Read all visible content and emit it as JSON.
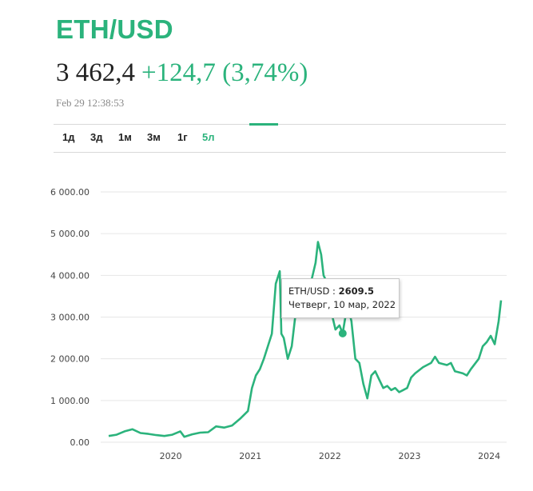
{
  "header": {
    "title": "ETH/USD",
    "price": "3 462,4",
    "change": "+124,7 (3,74%)",
    "timestamp": "Feb 29 12:38:53"
  },
  "tabs": [
    {
      "label": "1д",
      "active": false
    },
    {
      "label": "3д",
      "active": false
    },
    {
      "label": "1м",
      "active": false
    },
    {
      "label": "3м",
      "active": false
    },
    {
      "label": "1г",
      "active": false
    },
    {
      "label": "5л",
      "active": true
    }
  ],
  "colors": {
    "accent": "#2bb37c",
    "grid": "#e6e6e6"
  },
  "tooltip": {
    "series": "ETH/USD",
    "value": "2609.5",
    "date_label": "Четверг, 10 мар, 2022",
    "point": {
      "x": 2022.19,
      "y": 2609.5
    }
  },
  "chart_data": {
    "type": "line",
    "x_unit": "year",
    "xlim": [
      2019.15,
      2024.25
    ],
    "ylim": [
      0,
      6000
    ],
    "y_ticks": [
      "0.00",
      "1 000.00",
      "2 000.00",
      "3 000.00",
      "4 000.00",
      "5 000.00",
      "6 000.00"
    ],
    "x_ticks": [
      "2020",
      "2021",
      "2022",
      "2023",
      "2024"
    ],
    "grid": true,
    "series": [
      {
        "color": "#2bb37c",
        "x": [
          2019.25,
          2019.35,
          2019.45,
          2019.55,
          2019.65,
          2019.75,
          2019.85,
          2019.95,
          2020.05,
          2020.15,
          2020.2,
          2020.3,
          2020.4,
          2020.5,
          2020.6,
          2020.7,
          2020.8,
          2020.9,
          2021.0,
          2021.05,
          2021.1,
          2021.15,
          2021.2,
          2021.25,
          2021.3,
          2021.35,
          2021.4,
          2021.42,
          2021.45,
          2021.5,
          2021.55,
          2021.6,
          2021.65,
          2021.7,
          2021.75,
          2021.8,
          2021.85,
          2021.88,
          2021.92,
          2021.95,
          2022.0,
          2022.05,
          2022.1,
          2022.15,
          2022.19,
          2022.25,
          2022.3,
          2022.35,
          2022.4,
          2022.45,
          2022.5,
          2022.55,
          2022.6,
          2022.65,
          2022.7,
          2022.75,
          2022.8,
          2022.85,
          2022.9,
          2022.95,
          2023.0,
          2023.05,
          2023.1,
          2023.2,
          2023.3,
          2023.35,
          2023.4,
          2023.5,
          2023.55,
          2023.6,
          2023.7,
          2023.75,
          2023.8,
          2023.9,
          2023.95,
          2024.0,
          2024.05,
          2024.1,
          2024.15,
          2024.18
        ],
        "y": [
          150,
          180,
          260,
          310,
          220,
          200,
          170,
          150,
          180,
          260,
          130,
          190,
          230,
          240,
          380,
          350,
          400,
          560,
          750,
          1300,
          1600,
          1750,
          2000,
          2300,
          2600,
          3800,
          4100,
          2600,
          2500,
          2000,
          2300,
          3100,
          3400,
          3200,
          3500,
          3900,
          4300,
          4800,
          4500,
          4000,
          3800,
          3100,
          2700,
          2800,
          2609.5,
          3300,
          2900,
          2000,
          1900,
          1400,
          1050,
          1600,
          1700,
          1500,
          1300,
          1350,
          1250,
          1300,
          1200,
          1250,
          1300,
          1550,
          1650,
          1800,
          1900,
          2050,
          1900,
          1850,
          1900,
          1700,
          1650,
          1600,
          1750,
          2000,
          2300,
          2400,
          2550,
          2350,
          2900,
          3400
        ]
      }
    ]
  }
}
